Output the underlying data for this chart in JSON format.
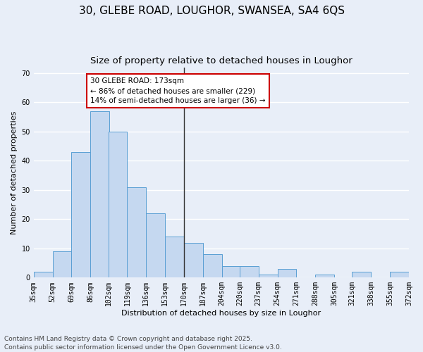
{
  "title1": "30, GLEBE ROAD, LOUGHOR, SWANSEA, SA4 6QS",
  "title2": "Size of property relative to detached houses in Loughor",
  "xlabel": "Distribution of detached houses by size in Loughor",
  "ylabel": "Number of detached properties",
  "bar_color": "#c5d8f0",
  "bar_edge_color": "#5a9fd4",
  "background_color": "#e8eef8",
  "grid_color": "#ffffff",
  "bins": [
    35,
    52,
    69,
    86,
    102,
    119,
    136,
    153,
    170,
    187,
    204,
    220,
    237,
    254,
    271,
    288,
    305,
    321,
    338,
    355,
    372
  ],
  "bin_labels": [
    "35sqm",
    "52sqm",
    "69sqm",
    "86sqm",
    "102sqm",
    "119sqm",
    "136sqm",
    "153sqm",
    "170sqm",
    "187sqm",
    "204sqm",
    "220sqm",
    "237sqm",
    "254sqm",
    "271sqm",
    "288sqm",
    "305sqm",
    "321sqm",
    "338sqm",
    "355sqm",
    "372sqm"
  ],
  "values": [
    2,
    9,
    43,
    57,
    50,
    31,
    22,
    14,
    12,
    8,
    4,
    4,
    1,
    3,
    0,
    1,
    0,
    2,
    0,
    2
  ],
  "ylim": [
    0,
    72
  ],
  "yticks": [
    0,
    10,
    20,
    30,
    40,
    50,
    60,
    70
  ],
  "vline_x": 170,
  "annotation_title": "30 GLEBE ROAD: 173sqm",
  "annotation_line1": "← 86% of detached houses are smaller (229)",
  "annotation_line2": "14% of semi-detached houses are larger (36) →",
  "annotation_box_color": "#ffffff",
  "annotation_box_edge": "#cc0000",
  "footer": "Contains HM Land Registry data © Crown copyright and database right 2025.\nContains public sector information licensed under the Open Government Licence v3.0.",
  "title_fontsize": 11,
  "subtitle_fontsize": 9.5,
  "axis_label_fontsize": 8,
  "tick_fontsize": 7,
  "annotation_fontsize": 7.5,
  "footer_fontsize": 6.5
}
